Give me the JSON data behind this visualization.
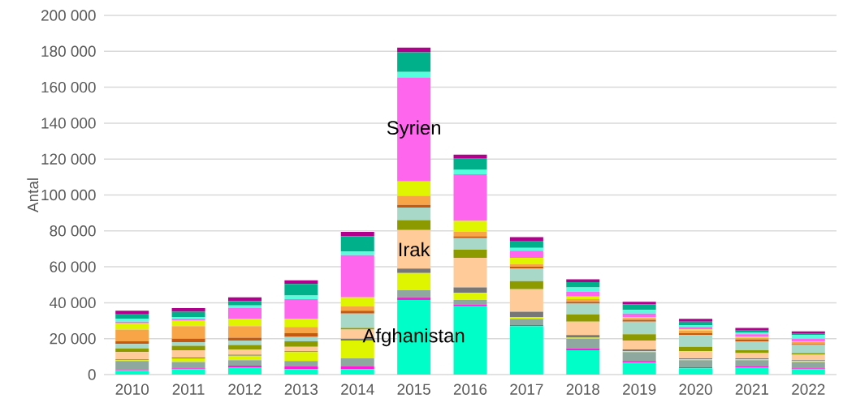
{
  "chart_data": {
    "type": "bar",
    "stacked": true,
    "ylabel": "Antal",
    "categories": [
      "2010",
      "2011",
      "2012",
      "2013",
      "2014",
      "2015",
      "2016",
      "2017",
      "2018",
      "2019",
      "2020",
      "2021",
      "2022"
    ],
    "ylim": [
      0,
      200000
    ],
    "yticks": [
      {
        "value": 0,
        "label": "0"
      },
      {
        "value": 20000,
        "label": "20 000"
      },
      {
        "value": 40000,
        "label": "40 000"
      },
      {
        "value": 60000,
        "label": "60 000"
      },
      {
        "value": 80000,
        "label": "80 000"
      },
      {
        "value": 100000,
        "label": "100 000"
      },
      {
        "value": 120000,
        "label": "120 000"
      },
      {
        "value": 140000,
        "label": "140 000"
      },
      {
        "value": 160000,
        "label": "160 000"
      },
      {
        "value": 180000,
        "label": "180 000"
      },
      {
        "value": 200000,
        "label": "200 000"
      }
    ],
    "grid": "y",
    "series": [
      {
        "name": "Afghanistan",
        "color": "#00ffc8",
        "values": [
          2000,
          3000,
          4000,
          3000,
          3000,
          41500,
          38000,
          27000,
          13500,
          6500,
          3500,
          4000,
          3000
        ]
      },
      {
        "color": "#ff1ad9",
        "values": [
          500,
          500,
          1000,
          1500,
          1500,
          1500,
          1000,
          500,
          1000,
          1000,
          500,
          500,
          500
        ]
      },
      {
        "color": "#8fa89f",
        "values": [
          5000,
          3500,
          3000,
          3000,
          4500,
          4000,
          2500,
          3500,
          5500,
          5000,
          4000,
          3500,
          3500
        ]
      },
      {
        "color": "#dff500",
        "values": [
          500,
          2000,
          2500,
          5000,
          10000,
          9500,
          4000,
          1000,
          500,
          500,
          500,
          500,
          500
        ]
      },
      {
        "color": "#777777",
        "values": [
          500,
          500,
          500,
          500,
          1000,
          2500,
          3000,
          3000,
          1500,
          1000,
          500,
          500,
          500
        ]
      },
      {
        "name": "Irak",
        "color": "#ffcc99",
        "values": [
          4000,
          4000,
          3000,
          2500,
          5000,
          21500,
          16500,
          12500,
          7500,
          5000,
          4000,
          3000,
          3000
        ]
      },
      {
        "color": "#8c9a00",
        "values": [
          2000,
          2500,
          2500,
          3000,
          1000,
          5500,
          4500,
          4500,
          4000,
          3500,
          2500,
          1500,
          1000
        ]
      },
      {
        "color": "#a8d8c8",
        "values": [
          2500,
          2000,
          2500,
          2500,
          8000,
          7000,
          6500,
          7000,
          6000,
          7000,
          6500,
          5000,
          4500
        ]
      },
      {
        "color": "#c65911",
        "values": [
          1500,
          2000,
          1500,
          2000,
          1500,
          1500,
          1000,
          1000,
          1000,
          1000,
          1000,
          1000,
          500
        ]
      },
      {
        "color": "#f8a548",
        "values": [
          6500,
          7000,
          6500,
          3500,
          2500,
          5000,
          2500,
          1500,
          1500,
          1000,
          1500,
          1000,
          1000
        ]
      },
      {
        "color": "#dff500",
        "values": [
          3500,
          3000,
          4000,
          4500,
          5000,
          8000,
          6000,
          3500,
          1500,
          500,
          500,
          500,
          500
        ]
      },
      {
        "name": "Syrien",
        "color": "#ff66ee",
        "values": [
          1000,
          1000,
          6000,
          11000,
          23500,
          58000,
          26000,
          4000,
          2500,
          2000,
          1500,
          1500,
          1500
        ]
      },
      {
        "color": "#55ffdd",
        "values": [
          1500,
          1000,
          1500,
          2000,
          2000,
          3000,
          2500,
          1500,
          2500,
          2000,
          1000,
          1000,
          2000
        ]
      },
      {
        "color": "#00b08a",
        "values": [
          2500,
          3000,
          2500,
          6500,
          8500,
          11000,
          6500,
          4000,
          3000,
          3000,
          2000,
          1000,
          1000
        ]
      },
      {
        "color": "#b0008c",
        "values": [
          2000,
          2000,
          2000,
          2000,
          2500,
          2500,
          2000,
          2000,
          1500,
          1500,
          1500,
          1500,
          1000
        ]
      }
    ]
  }
}
